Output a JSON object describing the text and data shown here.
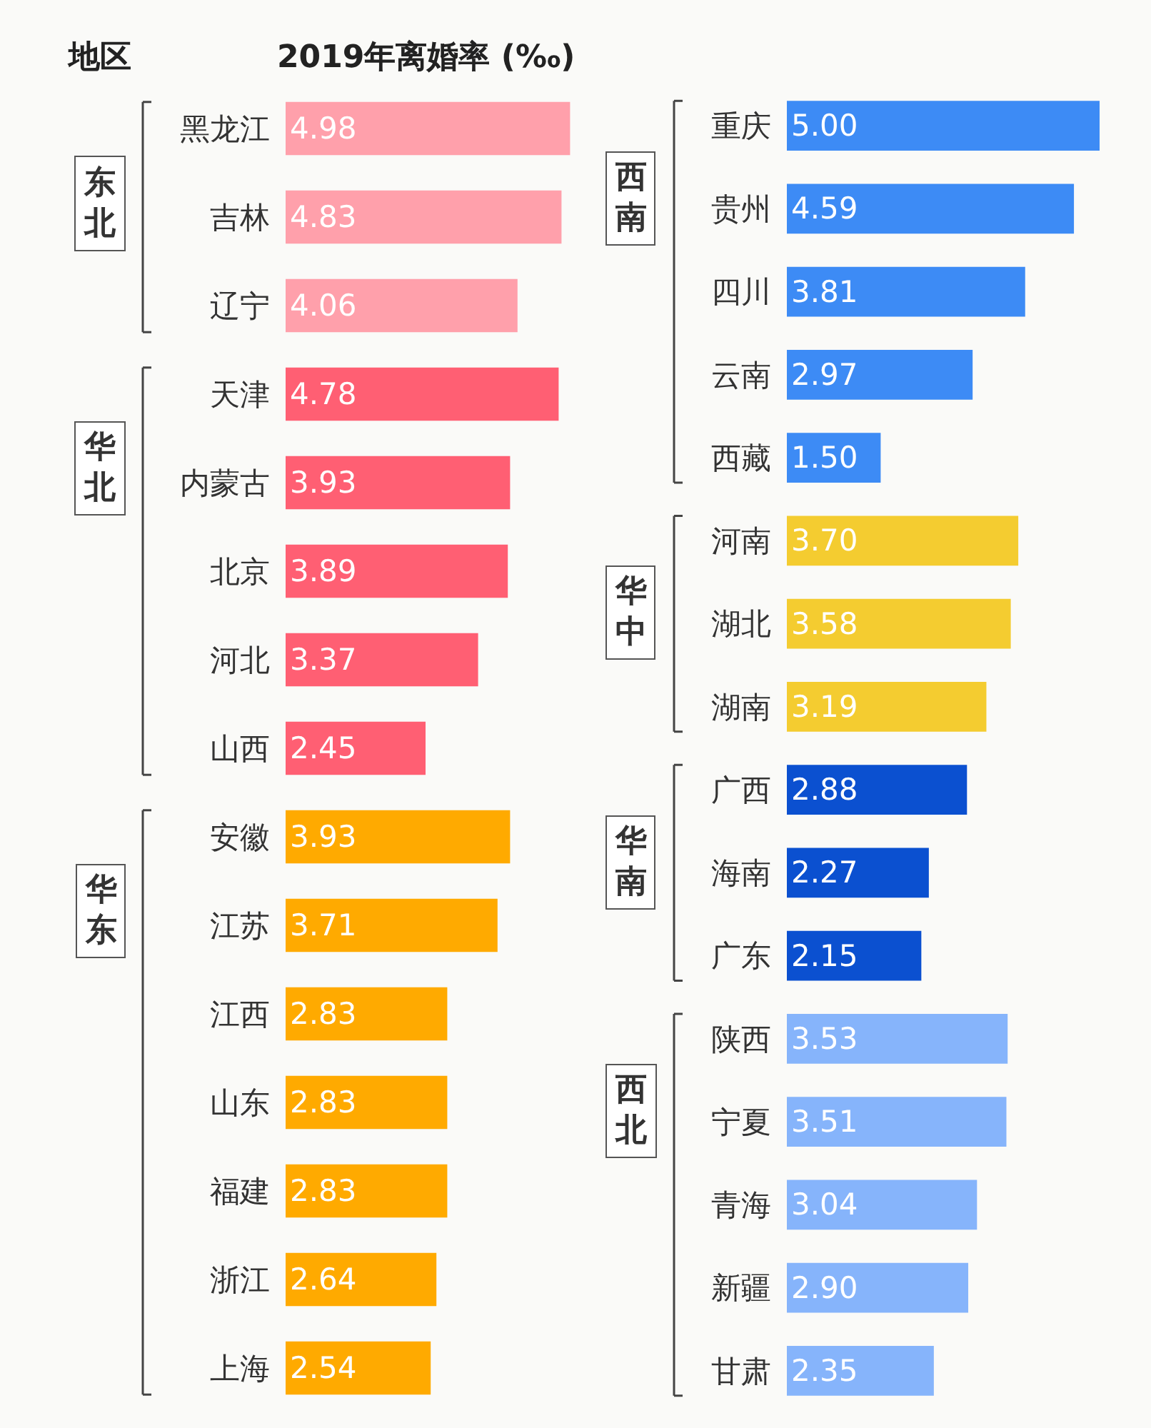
{
  "chart_data": [
    {
      "type": "bar",
      "orientation": "horizontal",
      "title": "2019年离婚率 (‰)",
      "ylabel": "地区",
      "xlim": [
        0,
        5
      ],
      "tick_labels": "y",
      "grid": false,
      "categories": [
        "黑龙江",
        "吉林",
        "辽宁",
        "天津",
        "内蒙古",
        "北京",
        "河北",
        "山西",
        "安徽",
        "江苏",
        "江西",
        "山东",
        "福建",
        "浙江",
        "上海"
      ],
      "values": [
        4.98,
        4.83,
        4.06,
        4.78,
        3.93,
        3.89,
        3.37,
        2.45,
        3.93,
        3.71,
        2.83,
        2.83,
        2.83,
        2.64,
        2.54
      ],
      "value_labels": [
        "4.98",
        "4.83",
        "4.06",
        "4.78",
        "3.93",
        "3.89",
        "3.37",
        "2.45",
        "3.93",
        "3.71",
        "2.83",
        "2.83",
        "2.83",
        "2.64",
        "2.54"
      ],
      "colors": [
        "#ffa0ab",
        "#ffa0ab",
        "#ffa0ab",
        "#ff5f73",
        "#ff5f73",
        "#ff5f73",
        "#ff5f73",
        "#ff5f73",
        "#ffaa00",
        "#ffaa00",
        "#ffaa00",
        "#ffaa00",
        "#ffaa00",
        "#ffaa00",
        "#ffaa00"
      ],
      "annotations": [
        "东北",
        "华北",
        "华东"
      ]
    },
    {
      "type": "bar",
      "orientation": "horizontal",
      "xlim": [
        0,
        5
      ],
      "tick_labels": "y",
      "grid": false,
      "categories": [
        "重庆",
        "贵州",
        "四川",
        "云南",
        "西藏",
        "河南",
        "湖北",
        "湖南",
        "广西",
        "海南",
        "广东",
        "陕西",
        "宁夏",
        "青海",
        "新疆",
        "甘肃"
      ],
      "values": [
        5.0,
        4.59,
        3.81,
        2.97,
        1.5,
        3.7,
        3.58,
        3.19,
        2.88,
        2.27,
        2.15,
        3.53,
        3.51,
        3.04,
        2.9,
        2.35
      ],
      "value_labels": [
        "5.00",
        "4.59",
        "3.81",
        "2.97",
        "1.50",
        "3.70",
        "3.58",
        "3.19",
        "2.88",
        "2.27",
        "2.15",
        "3.53",
        "3.51",
        "3.04",
        "2.90",
        "2.35"
      ],
      "colors": [
        "#3d8bf5",
        "#3d8bf5",
        "#3d8bf5",
        "#3d8bf5",
        "#3d8bf5",
        "#f4cc30",
        "#f4cc30",
        "#f4cc30",
        "#0b50d0",
        "#0b50d0",
        "#0b50d0",
        "#86b4fb",
        "#86b4fb",
        "#86b4fb",
        "#86b4fb",
        "#86b4fb"
      ],
      "annotations": [
        "西南",
        "华中",
        "华南",
        "西北"
      ]
    }
  ]
}
